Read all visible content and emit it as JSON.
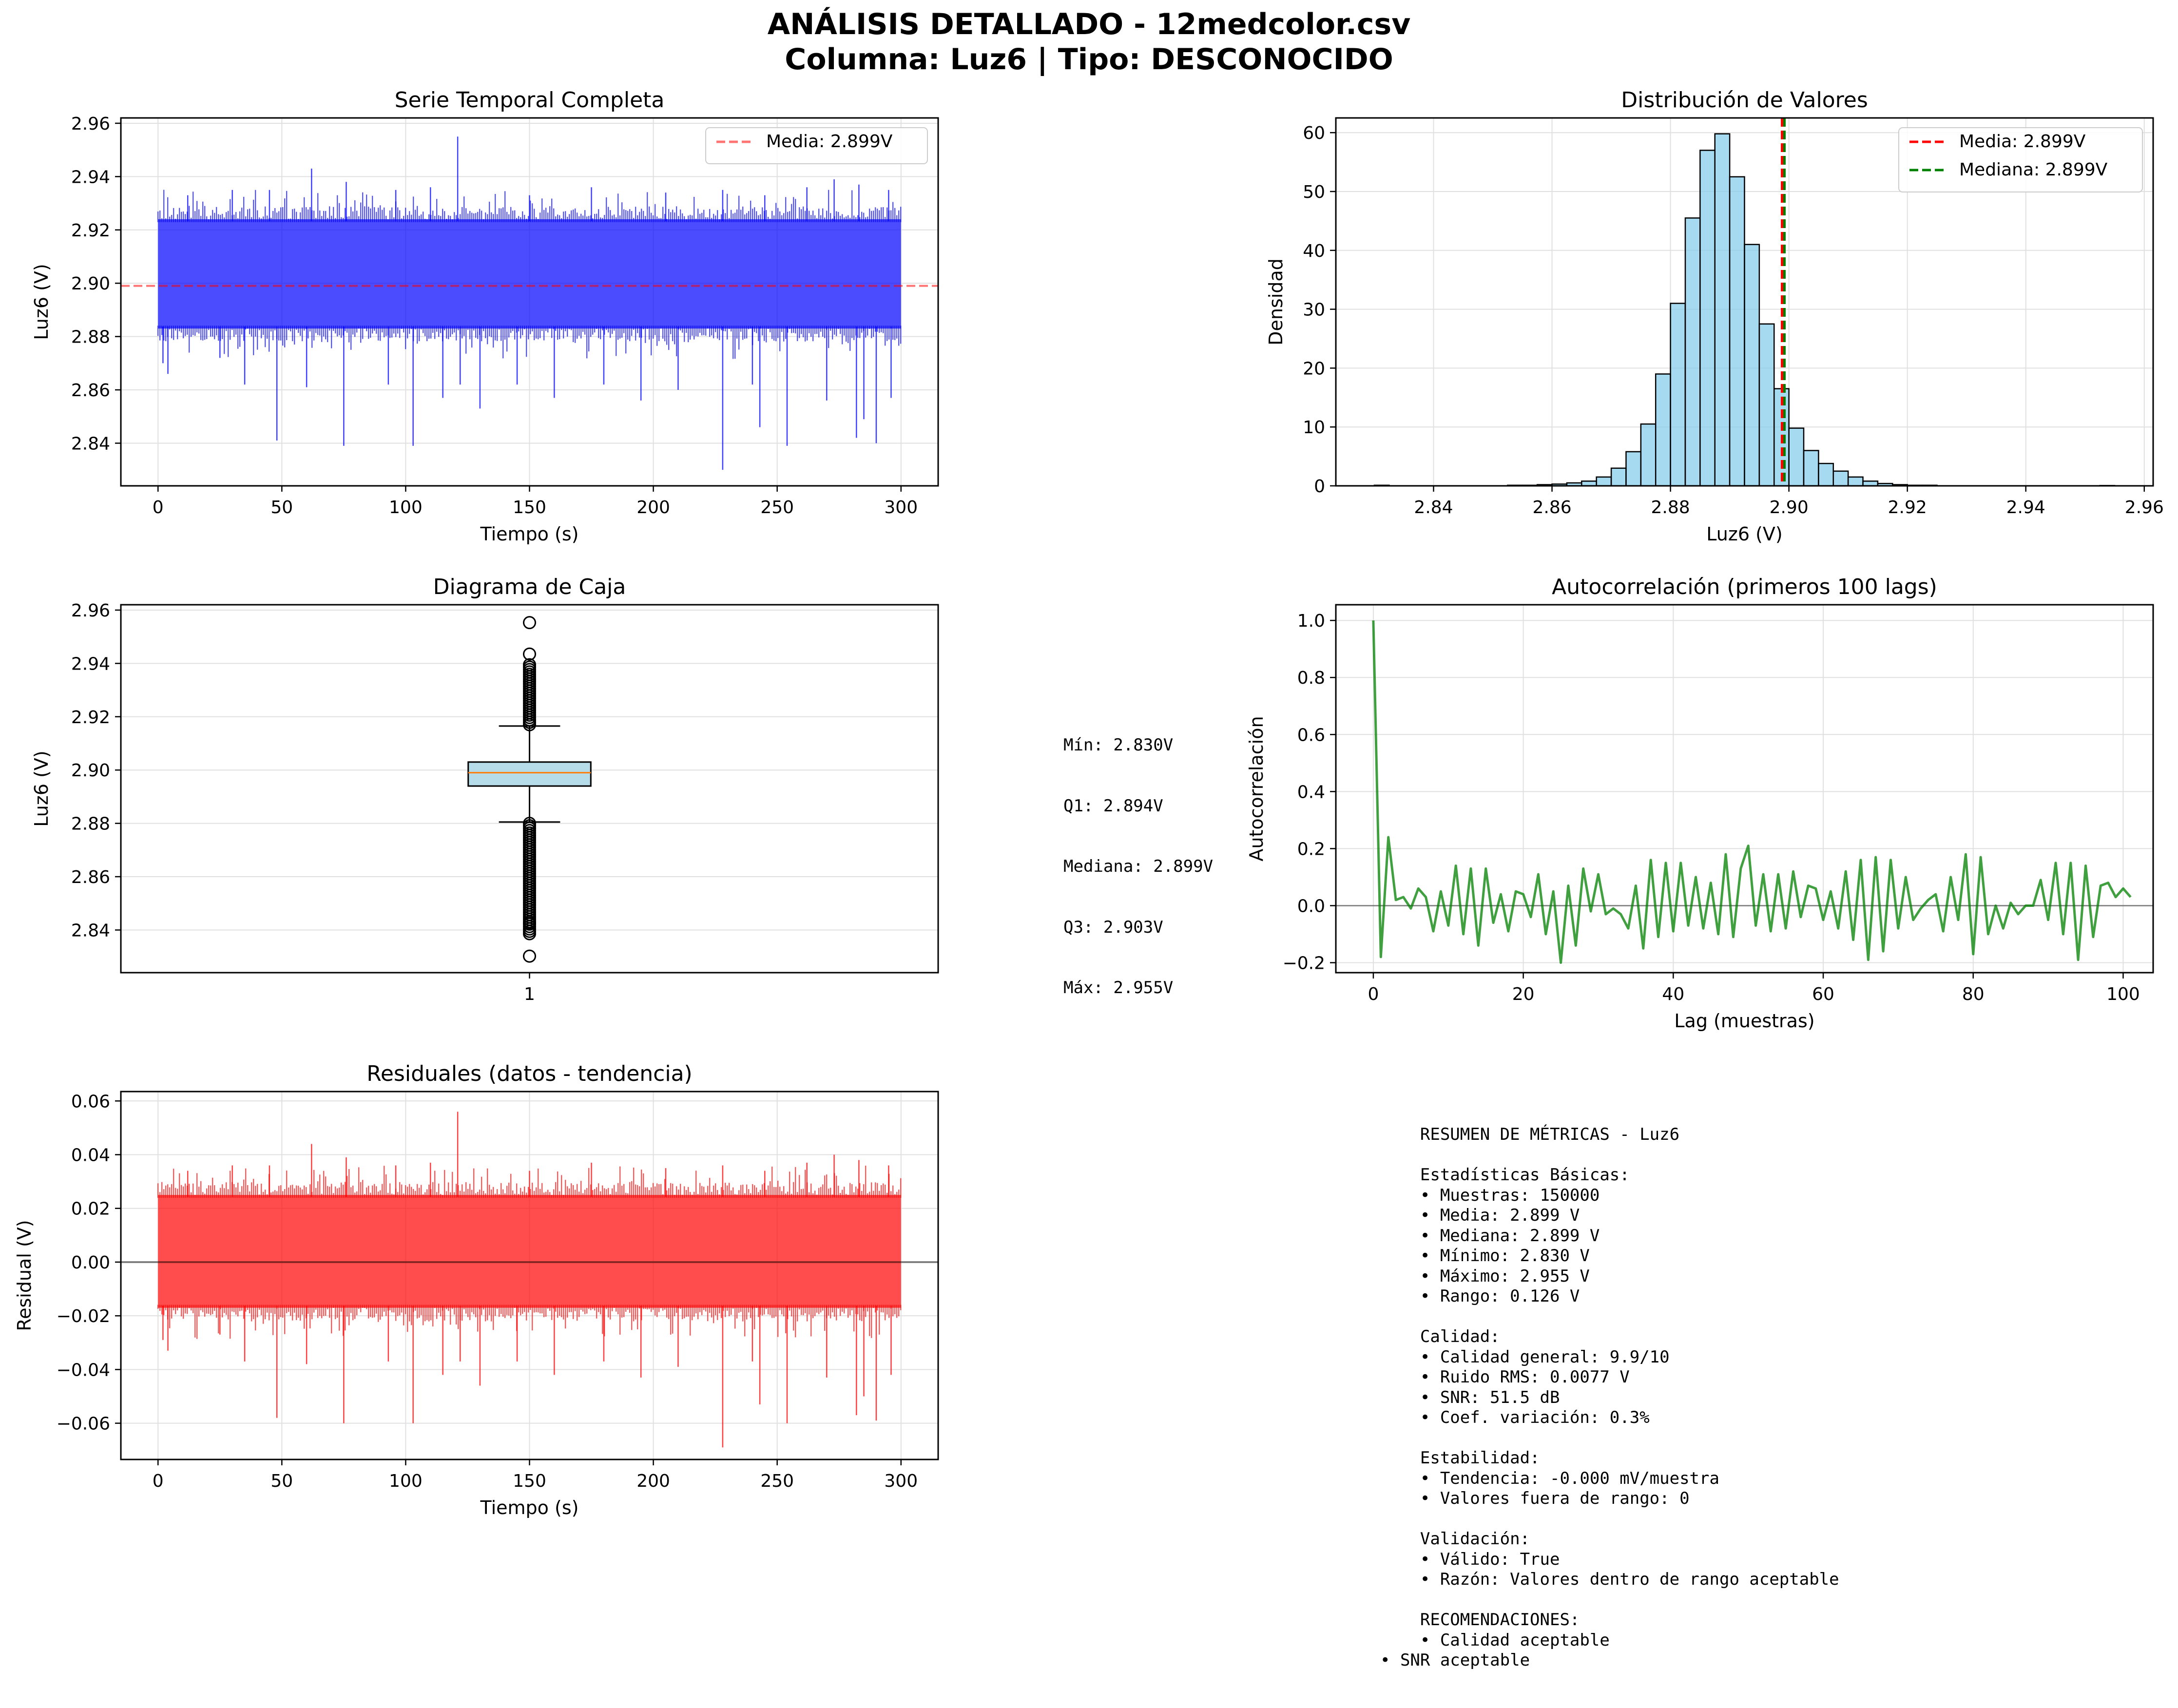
{
  "title_line1": "ANÁLISIS DETALLADO - 12medcolor.csv",
  "title_line2": "Columna: Luz6 | Tipo: DESCONOCIDO",
  "colors": {
    "series": "#0000ff",
    "mean_line": "#ff0000",
    "median_line": "#008000",
    "hist_fill": "#87ceeb",
    "acf_line": "#008000",
    "residual": "#ff0000",
    "box_fill": "#add8e6",
    "box_median": "#ff7f0e",
    "grid": "#e0e0e0"
  },
  "chart_data": [
    {
      "id": "serie",
      "type": "line",
      "title": "Serie Temporal Completa",
      "xlabel": "Tiempo (s)",
      "ylabel": "Luz6 (V)",
      "xlim": [
        -15,
        315
      ],
      "ylim": [
        2.824,
        2.962
      ],
      "xticks": [
        0,
        50,
        100,
        150,
        200,
        250,
        300
      ],
      "yticks": [
        2.84,
        2.86,
        2.88,
        2.9,
        2.92,
        2.94,
        2.96
      ],
      "grid": true,
      "legend_position": "top-right",
      "legend": [
        "Media: 2.899V"
      ],
      "band": {
        "x": [
          0,
          300
        ],
        "lower": 2.883,
        "upper": 2.924
      },
      "mean": 2.899,
      "spikes_low": [
        [
          2,
          2.87
        ],
        [
          4,
          2.866
        ],
        [
          25,
          2.872
        ],
        [
          35,
          2.862
        ],
        [
          48,
          2.841
        ],
        [
          60,
          2.861
        ],
        [
          75,
          2.839
        ],
        [
          93,
          2.862
        ],
        [
          103,
          2.839
        ],
        [
          115,
          2.857
        ],
        [
          122,
          2.862
        ],
        [
          130,
          2.853
        ],
        [
          145,
          2.862
        ],
        [
          160,
          2.857
        ],
        [
          180,
          2.862
        ],
        [
          195,
          2.856
        ],
        [
          210,
          2.86
        ],
        [
          228,
          2.83
        ],
        [
          240,
          2.862
        ],
        [
          243,
          2.846
        ],
        [
          254,
          2.839
        ],
        [
          270,
          2.856
        ],
        [
          282,
          2.842
        ],
        [
          285,
          2.849
        ],
        [
          290,
          2.84
        ],
        [
          296,
          2.857
        ]
      ],
      "spikes_high": [
        [
          12,
          2.933
        ],
        [
          30,
          2.935
        ],
        [
          45,
          2.935
        ],
        [
          62,
          2.943
        ],
        [
          76,
          2.938
        ],
        [
          96,
          2.935
        ],
        [
          110,
          2.936
        ],
        [
          121,
          2.955
        ],
        [
          150,
          2.933
        ],
        [
          175,
          2.936
        ],
        [
          205,
          2.934
        ],
        [
          228,
          2.935
        ],
        [
          245,
          2.933
        ],
        [
          262,
          2.936
        ],
        [
          273,
          2.939
        ],
        [
          283,
          2.937
        ],
        [
          295,
          2.935
        ]
      ]
    },
    {
      "id": "hist",
      "type": "bar",
      "title": "Distribución de Valores",
      "xlabel": "Luz6 (V)",
      "ylabel": "Densidad",
      "xlim": [
        2.8235,
        2.9615
      ],
      "ylim": [
        0,
        62.5
      ],
      "xticks": [
        2.84,
        2.86,
        2.88,
        2.9,
        2.92,
        2.94,
        2.96
      ],
      "yticks": [
        0,
        10,
        20,
        30,
        40,
        50,
        60
      ],
      "grid": true,
      "legend_position": "top-right",
      "legend": [
        "Media: 2.899V",
        "Mediana: 2.899V"
      ],
      "bin_start": 2.83,
      "bin_width": 0.0025,
      "values": [
        0.1,
        0,
        0,
        0,
        0,
        0,
        0,
        0,
        0,
        0.1,
        0.1,
        0.2,
        0.3,
        0.5,
        0.8,
        1.5,
        3.0,
        5.8,
        10.5,
        19.0,
        31.0,
        45.5,
        57.0,
        59.8,
        52.5,
        41.0,
        27.5,
        16.5,
        9.8,
        6.0,
        3.8,
        2.5,
        1.5,
        0.8,
        0.4,
        0.2,
        0.1,
        0.1,
        0,
        0,
        0,
        0,
        0,
        0,
        0,
        0,
        0,
        0,
        0,
        0.05
      ],
      "mean": 2.899,
      "median": 2.899
    },
    {
      "id": "box",
      "type": "box",
      "title": "Diagrama de Caja",
      "ylabel": "Luz6 (V)",
      "xtick": "1",
      "ylim": [
        2.824,
        2.962
      ],
      "yticks": [
        2.84,
        2.86,
        2.88,
        2.9,
        2.92,
        2.94,
        2.96
      ],
      "grid": true,
      "q1": 2.894,
      "median": 2.899,
      "q3": 2.903,
      "whisker_low": 2.8805,
      "whisker_high": 2.9165,
      "outliers_low_range": [
        2.838,
        2.88
      ],
      "outliers_high_range": [
        2.917,
        2.94
      ],
      "outliers_extra": [
        2.8302,
        2.8425,
        2.9435,
        2.9553
      ]
    },
    {
      "id": "acf",
      "type": "line",
      "title": "Autocorrelación (primeros 100 lags)",
      "xlabel": "Lag (muestras)",
      "ylabel": "Autocorrelación",
      "xlim": [
        -5,
        104
      ],
      "ylim": [
        -0.235,
        1.055
      ],
      "xticks": [
        0,
        20,
        40,
        60,
        80,
        100
      ],
      "yticks": [
        -0.2,
        0.0,
        0.2,
        0.4,
        0.6,
        0.8,
        1.0
      ],
      "grid": true,
      "x_start": 0,
      "values": [
        1.0,
        -0.18,
        0.24,
        0.02,
        0.03,
        -0.01,
        0.06,
        0.03,
        -0.09,
        0.05,
        -0.07,
        0.14,
        -0.1,
        0.13,
        -0.14,
        0.13,
        -0.06,
        0.04,
        -0.09,
        0.05,
        0.04,
        -0.04,
        0.11,
        -0.1,
        0.05,
        -0.2,
        0.07,
        -0.14,
        0.13,
        -0.02,
        0.11,
        -0.03,
        -0.01,
        -0.03,
        -0.08,
        0.07,
        -0.15,
        0.16,
        -0.11,
        0.15,
        -0.09,
        0.15,
        -0.07,
        0.1,
        -0.08,
        0.08,
        -0.1,
        0.18,
        -0.11,
        0.13,
        0.21,
        -0.07,
        0.11,
        -0.09,
        0.11,
        -0.08,
        0.12,
        -0.04,
        0.07,
        0.06,
        -0.05,
        0.05,
        -0.08,
        0.12,
        -0.12,
        0.16,
        -0.19,
        0.17,
        -0.16,
        0.16,
        -0.08,
        0.1,
        -0.05,
        -0.01,
        0.02,
        0.04,
        -0.09,
        0.1,
        -0.05,
        0.18,
        -0.17,
        0.17,
        -0.1,
        0.0,
        -0.08,
        0.01,
        -0.03,
        0.0,
        0.0,
        0.09,
        -0.05,
        0.15,
        -0.1,
        0.15,
        -0.19,
        0.14,
        -0.11,
        0.07,
        0.08,
        0.03,
        0.06,
        0.03
      ]
    },
    {
      "id": "resid",
      "type": "line",
      "title": "Residuales (datos - tendencia)",
      "xlabel": "Tiempo (s)",
      "ylabel": "Residual (V)",
      "xlim": [
        -15,
        315
      ],
      "ylim": [
        -0.0735,
        0.0635
      ],
      "xticks": [
        0,
        50,
        100,
        150,
        200,
        250,
        300
      ],
      "yticks": [
        -0.06,
        -0.04,
        -0.02,
        0.0,
        0.02,
        0.04,
        0.06
      ],
      "ytick_labels": [
        "−0.06",
        "−0.04",
        "−0.02",
        "0.00",
        "0.02",
        "0.04",
        "0.06"
      ],
      "grid": true,
      "band": {
        "x": [
          0,
          300
        ],
        "lower": -0.017,
        "upper": 0.025
      },
      "spikes_low": [
        [
          2,
          -0.029
        ],
        [
          4,
          -0.033
        ],
        [
          25,
          -0.027
        ],
        [
          35,
          -0.037
        ],
        [
          48,
          -0.058
        ],
        [
          60,
          -0.038
        ],
        [
          75,
          -0.06
        ],
        [
          93,
          -0.037
        ],
        [
          103,
          -0.06
        ],
        [
          115,
          -0.042
        ],
        [
          122,
          -0.037
        ],
        [
          130,
          -0.046
        ],
        [
          145,
          -0.037
        ],
        [
          160,
          -0.042
        ],
        [
          180,
          -0.037
        ],
        [
          195,
          -0.043
        ],
        [
          210,
          -0.039
        ],
        [
          228,
          -0.069
        ],
        [
          240,
          -0.037
        ],
        [
          243,
          -0.053
        ],
        [
          254,
          -0.06
        ],
        [
          270,
          -0.043
        ],
        [
          282,
          -0.057
        ],
        [
          285,
          -0.05
        ],
        [
          290,
          -0.059
        ],
        [
          296,
          -0.042
        ]
      ],
      "spikes_high": [
        [
          12,
          0.034
        ],
        [
          30,
          0.036
        ],
        [
          45,
          0.036
        ],
        [
          62,
          0.044
        ],
        [
          76,
          0.039
        ],
        [
          96,
          0.036
        ],
        [
          110,
          0.037
        ],
        [
          121,
          0.056
        ],
        [
          150,
          0.034
        ],
        [
          175,
          0.037
        ],
        [
          205,
          0.035
        ],
        [
          228,
          0.036
        ],
        [
          245,
          0.034
        ],
        [
          262,
          0.037
        ],
        [
          273,
          0.04
        ],
        [
          283,
          0.038
        ],
        [
          295,
          0.036
        ]
      ]
    }
  ],
  "box_stats_lines": [
    "Mín: 2.830V",
    "Q1: 2.894V",
    "Mediana: 2.899V",
    "Q3: 2.903V",
    "Máx: 2.955V"
  ],
  "summary_lines": [
    "    RESUMEN DE MÉTRICAS - Luz6",
    "",
    "    Estadísticas Básicas:",
    "    • Muestras: 150000",
    "    • Media: 2.899 V",
    "    • Mediana: 2.899 V",
    "    • Mínimo: 2.830 V",
    "    • Máximo: 2.955 V",
    "    • Rango: 0.126 V",
    "",
    "    Calidad:",
    "    • Calidad general: 9.9/10",
    "    • Ruido RMS: 0.0077 V",
    "    • SNR: 51.5 dB",
    "    • Coef. variación: 0.3%",
    "",
    "    Estabilidad:",
    "    • Tendencia: -0.000 mV/muestra",
    "    • Valores fuera de rango: 0",
    "",
    "    Validación:",
    "    • Válido: True",
    "    • Razón: Valores dentro de rango aceptable",
    "",
    "    RECOMENDACIONES:",
    "    • Calidad aceptable",
    "• SNR aceptable"
  ]
}
